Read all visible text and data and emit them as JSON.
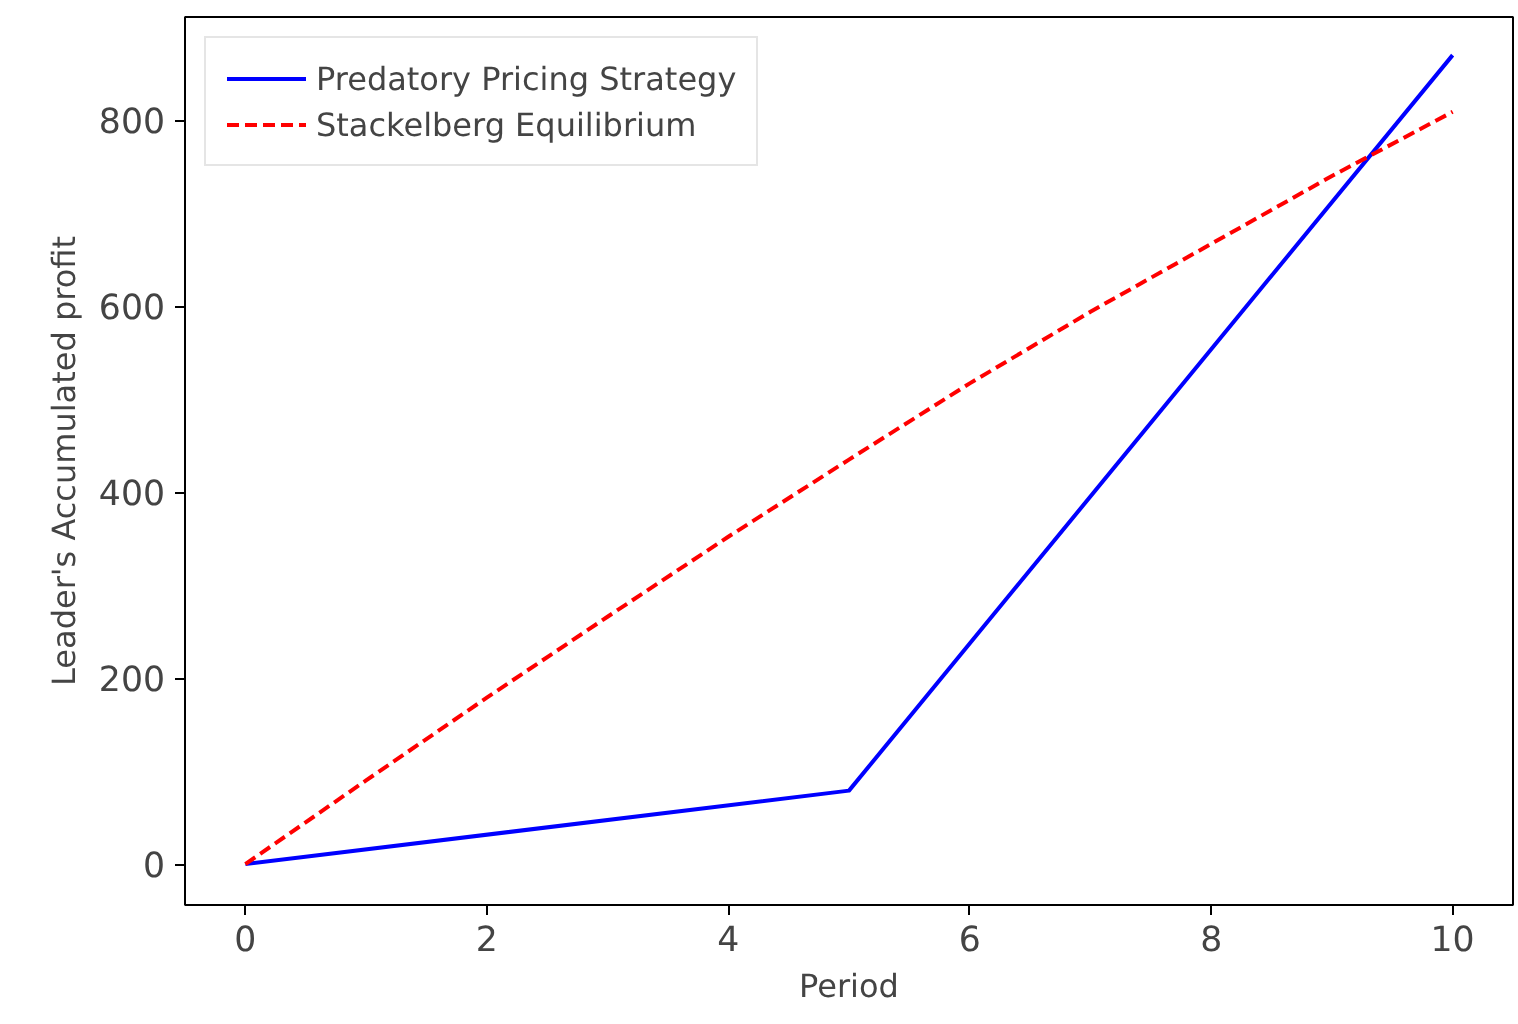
{
  "chart_data": {
    "type": "line",
    "xlabel": "Period",
    "ylabel": "Leader's Accumulated profit",
    "xlim": [
      -0.5,
      10.5
    ],
    "ylim": [
      -44,
      911
    ],
    "xticks": [
      0,
      2,
      4,
      6,
      8,
      10
    ],
    "yticks": [
      0,
      200,
      400,
      600,
      800
    ],
    "grid": false,
    "legend": "top left",
    "series": [
      {
        "name": "Predatory Pricing Strategy",
        "color": "#0000ff",
        "line_style": "solid",
        "x": [
          0,
          5,
          10
        ],
        "values": [
          0,
          79,
          870
        ]
      },
      {
        "name": "Stackelberg Equilibrium",
        "color": "#ff0000",
        "line_style": "dashed",
        "x": [
          0,
          1,
          2,
          3,
          4,
          5,
          6,
          7,
          8,
          9,
          10
        ],
        "values": [
          0,
          90,
          179,
          266,
          352,
          435,
          517,
          594,
          667,
          740,
          809
        ]
      }
    ]
  }
}
